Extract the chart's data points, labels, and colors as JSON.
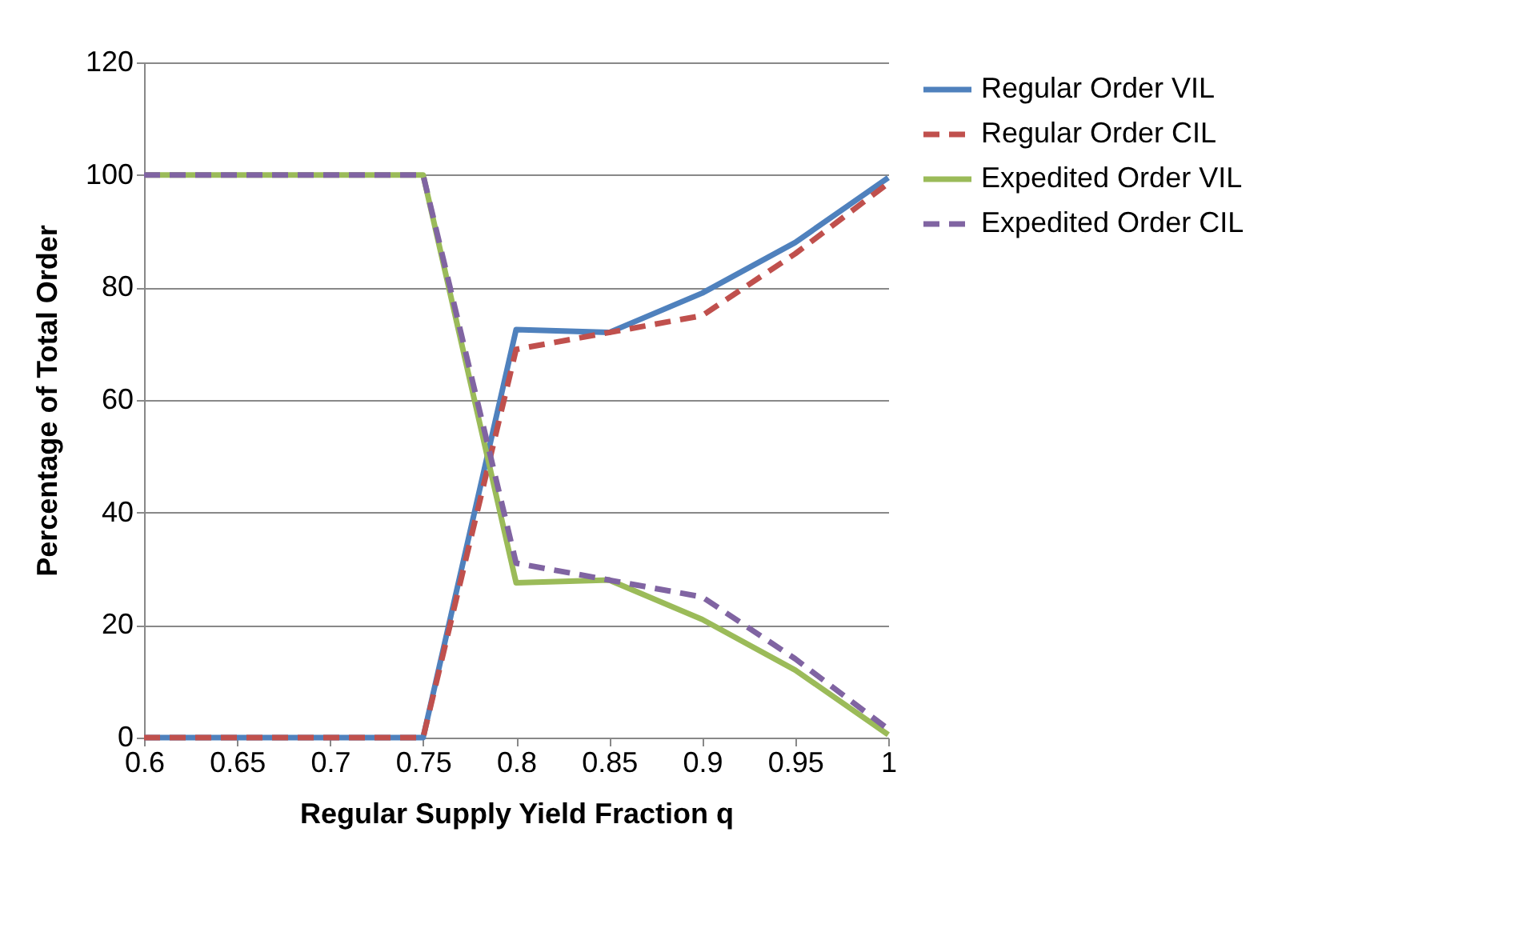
{
  "chart_data": {
    "type": "line",
    "xlabel": "Regular Supply Yield Fraction q",
    "ylabel": "Percentage of Total Order",
    "x": [
      0.6,
      0.65,
      0.7,
      0.75,
      0.8,
      0.85,
      0.9,
      0.95,
      1
    ],
    "series": [
      {
        "name": "Regular Order VIL",
        "color": "#4f81bd",
        "line_style": "solid",
        "values": [
          0,
          0,
          0,
          0,
          72.5,
          72,
          79,
          88,
          99.5
        ]
      },
      {
        "name": "Regular Order CIL",
        "color": "#c0504d",
        "line_style": "dashed",
        "values": [
          0,
          0,
          0,
          0,
          69,
          72,
          75,
          86,
          98.5
        ]
      },
      {
        "name": "Expedited Order VIL",
        "color": "#9bbb59",
        "line_style": "solid",
        "values": [
          100,
          100,
          100,
          100,
          27.5,
          28,
          21,
          12,
          0.5
        ]
      },
      {
        "name": "Expedited Order CIL",
        "color": "#8064a2",
        "line_style": "dashed",
        "values": [
          100,
          100,
          100,
          100,
          31,
          28,
          25,
          14,
          1.5
        ]
      }
    ],
    "xlim": [
      0.6,
      1
    ],
    "xticks": [
      0.6,
      0.65,
      0.7,
      0.75,
      0.8,
      0.85,
      0.9,
      0.95,
      1
    ],
    "ylim": [
      0,
      120
    ],
    "yticks": [
      0,
      20,
      40,
      60,
      80,
      100,
      120
    ],
    "grid": "y",
    "legend": "right",
    "marker": "none"
  }
}
